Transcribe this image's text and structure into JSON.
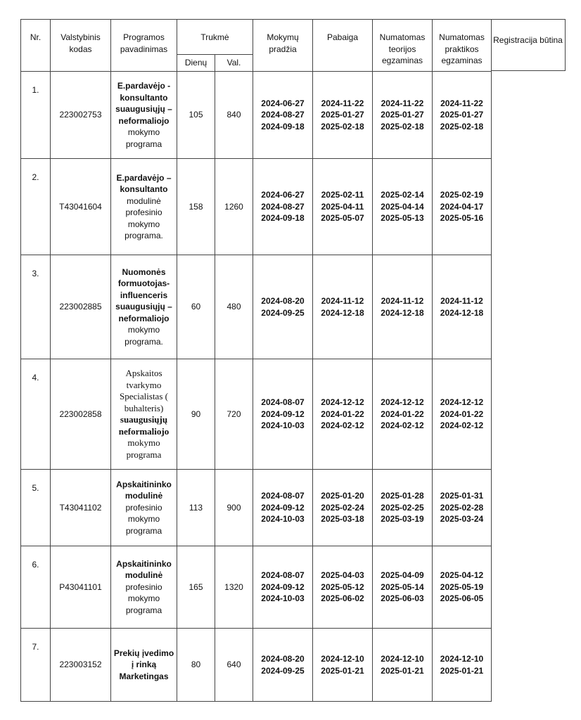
{
  "header": {
    "nr": "Nr.",
    "code": "Valstybinis kodas",
    "program": "Programos pavadinimas",
    "duration": "Trukmė",
    "days": "Dienų",
    "hours": "Val.",
    "start": "Mokymų pradžia",
    "end": "Pabaiga",
    "theory_exam": "Numatomas teorijos egzaminas",
    "practice_exam": "Numatomas praktikos egzaminas",
    "registration": "Registracija būtina"
  },
  "rows": [
    {
      "nr": "1.",
      "code": "223002753",
      "program": [
        {
          "text": "E.pardavėjo - konsultanto suaugusiųjų – neformaliojo",
          "bold": true
        },
        {
          "text": "mokymo programa",
          "bold": false
        }
      ],
      "days": "105",
      "hours": "840",
      "start": [
        "2024-06-27",
        "2024-08-27",
        "2024-09-18"
      ],
      "end": [
        "2024-11-22",
        "2025-01-27",
        "2025-02-18"
      ],
      "theory": [
        "2024-11-22",
        "2025-01-27",
        "2025-02-18"
      ],
      "practice": [
        "2024-11-22",
        "2025-01-27",
        "2025-02-18"
      ]
    },
    {
      "nr": "2.",
      "code": "T43041604",
      "program": [
        {
          "text": "E.pardavėjo – konsultanto",
          "bold": true
        },
        {
          "text": "modulinė profesinio mokymo programa.",
          "bold": false
        }
      ],
      "days": "158",
      "hours": "1260",
      "start": [
        "2024-06-27",
        "2024-08-27",
        "2024-09-18"
      ],
      "end": [
        "2025-02-11",
        "2025-04-11",
        "2025-05-07"
      ],
      "theory": [
        "2025-02-14",
        "2025-04-14",
        "2025-05-13"
      ],
      "practice": [
        "2025-02-19",
        "2024-04-17",
        "2025-05-16"
      ]
    },
    {
      "nr": "3.",
      "code": "223002885",
      "program": [
        {
          "text": "Nuomonės formuotojas-influenceris suaugusiųjų – neformaliojo",
          "bold": true
        },
        {
          "text": "mokymo programa.",
          "bold": false
        }
      ],
      "days": "60",
      "hours": "480",
      "start": [
        "2024-08-20",
        "2024-09-25"
      ],
      "end": [
        "2024-11-12",
        "2024-12-18"
      ],
      "theory": [
        "2024-11-12",
        "2024-12-18"
      ],
      "practice": [
        "2024-11-12",
        "2024-12-18"
      ]
    },
    {
      "nr": "4.",
      "code": "223002858",
      "serif": true,
      "program": [
        {
          "text": "Apskaitos tvarkymo Specialistas ( buhalteris)",
          "bold": false
        },
        {
          "text": "suaugusiųjų neformaliojo",
          "bold": true
        },
        {
          "text": "mokymo programa",
          "bold": false
        }
      ],
      "days": "90",
      "hours": "720",
      "start": [
        "2024-08-07",
        "2024-09-12",
        "2024-10-03"
      ],
      "end": [
        "2024-12-12",
        "2024-01-22",
        "2024-02-12"
      ],
      "theory": [
        "2024-12-12",
        "2024-01-22",
        "2024-02-12"
      ],
      "practice": [
        "2024-12-12",
        "2024-01-22",
        "2024-02-12"
      ]
    },
    {
      "nr": "5.",
      "code": "T43041102",
      "program": [
        {
          "text": "Apskaitininko modulinė",
          "bold": true
        },
        {
          "text": "profesinio mokymo programa",
          "bold": false
        }
      ],
      "days": "113",
      "hours": "900",
      "start": [
        "2024-08-07",
        "2024-09-12",
        "2024-10-03"
      ],
      "end": [
        "2025-01-20",
        "2025-02-24",
        "2025-03-18"
      ],
      "theory": [
        "2025-01-28",
        "2025-02-25",
        "2025-03-19"
      ],
      "practice": [
        "2025-01-31",
        "2025-02-28",
        "2025-03-24"
      ]
    },
    {
      "nr": "6.",
      "code": "P43041101",
      "program": [
        {
          "text": "Apskaitininko modulinė",
          "bold": true
        },
        {
          "text": "profesinio mokymo programa",
          "bold": false
        }
      ],
      "days": "165",
      "hours": "1320",
      "start": [
        "2024-08-07",
        "2024-09-12",
        "2024-10-03"
      ],
      "end": [
        "2025-04-03",
        "2025-05-12",
        "2025-06-02"
      ],
      "theory": [
        "2025-04-09",
        "2025-05-14",
        "2025-06-03"
      ],
      "practice": [
        "2025-04-12",
        "2025-05-19",
        "2025-06-05"
      ]
    },
    {
      "nr": "7.",
      "code": "223003152",
      "program": [
        {
          "text": "Prekių įvedimo į rinką Marketingas",
          "bold": true
        }
      ],
      "days": "80",
      "hours": "640",
      "start": [
        "2024-08-20",
        "2024-09-25"
      ],
      "end": [
        "2024-12-10",
        "2025-01-21"
      ],
      "theory": [
        "2024-12-10",
        "2025-01-21"
      ],
      "practice": [
        "2024-12-10",
        "2025-01-21"
      ]
    }
  ]
}
